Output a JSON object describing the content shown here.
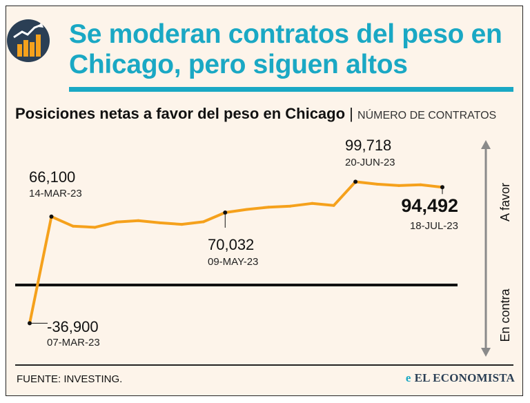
{
  "headline": "Se moderan contratos del peso en Chicago, pero siguen altos",
  "subtitle": {
    "bold": "Posiciones netas a favor del peso en Chicago",
    "separator": "|",
    "unit": "NÚMERO DE CONTRATOS"
  },
  "axis_labels": {
    "up": "A favor",
    "down": "En contra"
  },
  "footer": {
    "source": "FUENTE: INVESTING.",
    "brand": "EL ECONOMISTA",
    "brand_mark": "e"
  },
  "colors": {
    "accent": "#1aa8c4",
    "line": "#f5a11c",
    "navy": "#2b3f55"
  },
  "icons": {
    "logo": "chart-logo-icon",
    "arrows": "double-arrow-icon"
  },
  "chart_data": {
    "type": "line",
    "title": "Posiciones netas a favor del peso en Chicago",
    "ylabel": "Número de contratos",
    "baseline": 0,
    "ylim": [
      -45000,
      110000
    ],
    "series": [
      {
        "name": "Posiciones netas",
        "values": [
          -36900,
          66100,
          56800,
          55700,
          60800,
          62200,
          60100,
          58600,
          61100,
          70032,
          73000,
          75200,
          76200,
          78800,
          76800,
          99718,
          97400,
          96100,
          96800,
          94492
        ]
      }
    ],
    "annotations": [
      {
        "index": 0,
        "value": "-36,900",
        "date": "07-MAR-23"
      },
      {
        "index": 1,
        "value": "66,100",
        "date": "14-MAR-23"
      },
      {
        "index": 9,
        "value": "70,032",
        "date": "09-MAY-23"
      },
      {
        "index": 15,
        "value": "99,718",
        "date": "20-JUN-23"
      },
      {
        "index": 19,
        "value": "94,492",
        "date": "18-JUL-23"
      }
    ]
  }
}
